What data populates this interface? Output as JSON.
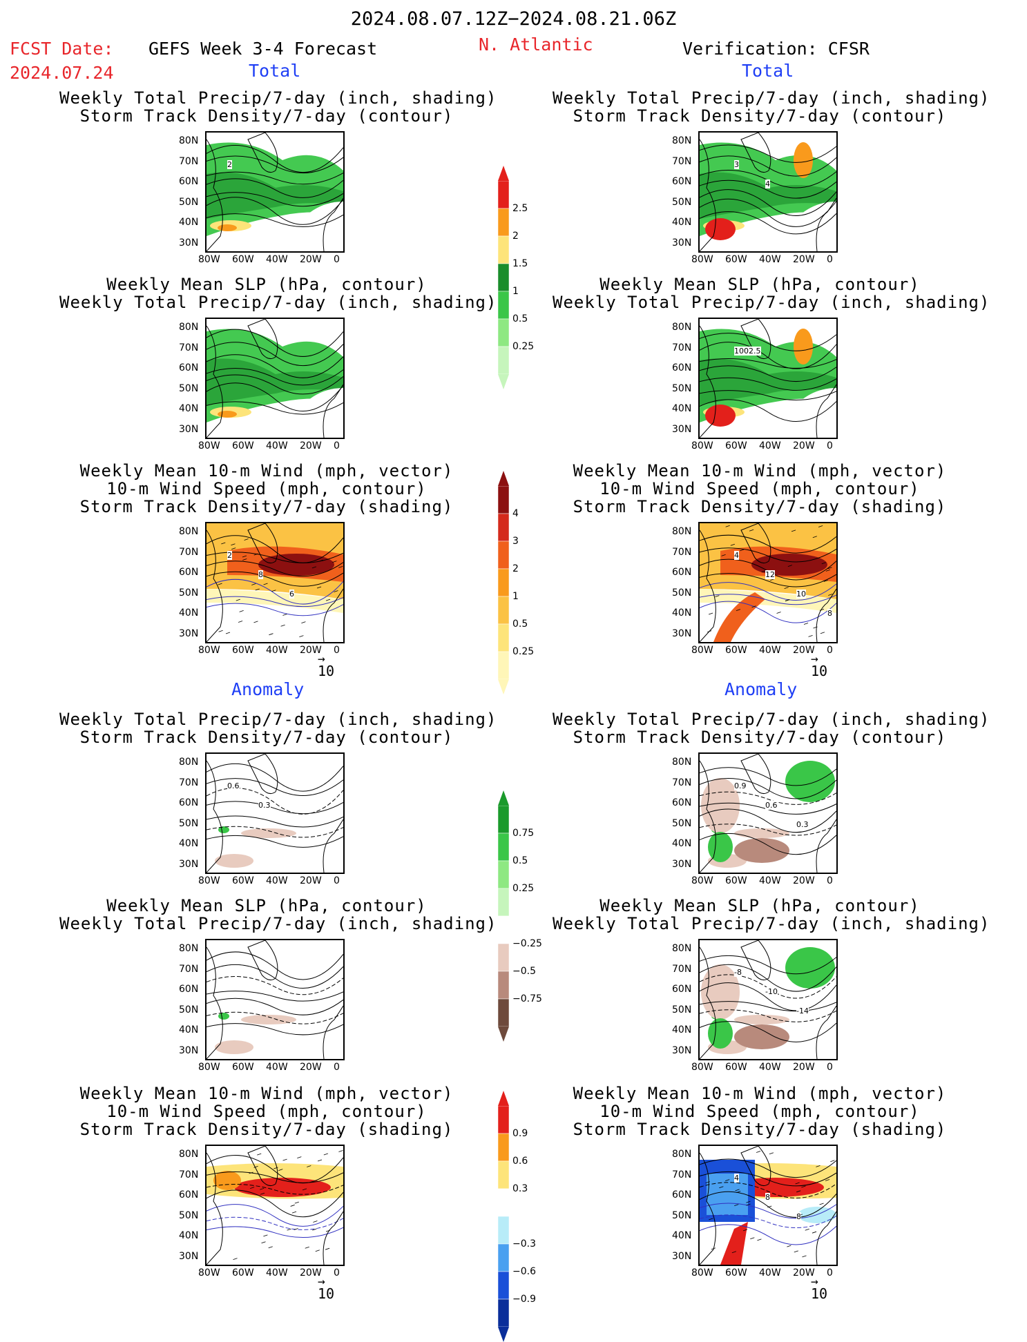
{
  "header": {
    "period": "2024.08.07.12Z−2024.08.21.06Z",
    "fcst_label": "FCST Date:",
    "fcst_date": "2024.07.24",
    "model": "GEFS Week 3-4 Forecast",
    "region": "N. Atlantic",
    "verification": "Verification: CFSR"
  },
  "sections": {
    "total": "Total",
    "anomaly": "Anomaly"
  },
  "panels": [
    {
      "title1": "Weekly Total Precip/7-day (inch, shading)",
      "title2": "Storm Track Density/7-day (contour)",
      "title3": "",
      "kind": "precip",
      "mode": "total",
      "side": "left",
      "labels": [
        "2"
      ]
    },
    {
      "title1": "Weekly Total Precip/7-day (inch, shading)",
      "title2": "Storm Track Density/7-day (contour)",
      "title3": "",
      "kind": "precip",
      "mode": "total",
      "side": "right",
      "labels": [
        "3",
        "4"
      ]
    },
    {
      "title1": "Weekly Mean SLP (hPa, contour)",
      "title2": "Weekly Total Precip/7-day (inch, shading)",
      "title3": "",
      "kind": "precip",
      "mode": "total",
      "side": "left",
      "labels": []
    },
    {
      "title1": "Weekly Mean SLP (hPa, contour)",
      "title2": "Weekly Total Precip/7-day (inch, shading)",
      "title3": "",
      "kind": "precip",
      "mode": "total",
      "side": "right",
      "labels": [
        "1002.5"
      ]
    },
    {
      "title1": "Weekly Mean 10-m Wind (mph, vector)",
      "title2": "10-m Wind Speed (mph, contour)",
      "title3": "Storm Track Density/7-day (shading)",
      "kind": "storm",
      "mode": "total",
      "side": "left",
      "labels": [
        "2",
        "8",
        "6"
      ]
    },
    {
      "title1": "Weekly Mean 10-m Wind (mph, vector)",
      "title2": "10-m Wind Speed (mph, contour)",
      "title3": "Storm Track Density/7-day (shading)",
      "kind": "storm",
      "mode": "total",
      "side": "right",
      "labels": [
        "4",
        "12",
        "10",
        "8"
      ]
    },
    {
      "title1": "Weekly Total Precip/7-day (inch, shading)",
      "title2": "Storm Track Density/7-day (contour)",
      "title3": "",
      "kind": "precip",
      "mode": "anom",
      "side": "left",
      "labels": [
        "0.6",
        "0.3"
      ]
    },
    {
      "title1": "Weekly Total Precip/7-day (inch, shading)",
      "title2": "Storm Track Density/7-day (contour)",
      "title3": "",
      "kind": "precip",
      "mode": "anom",
      "side": "right",
      "labels": [
        "0.9",
        "0.6",
        "0.3"
      ]
    },
    {
      "title1": "Weekly Mean SLP (hPa, contour)",
      "title2": "Weekly Total Precip/7-day (inch, shading)",
      "title3": "",
      "kind": "precip",
      "mode": "anom",
      "side": "left",
      "labels": []
    },
    {
      "title1": "Weekly Mean SLP (hPa, contour)",
      "title2": "Weekly Total Precip/7-day (inch, shading)",
      "title3": "",
      "kind": "precip",
      "mode": "anom",
      "side": "right",
      "labels": [
        "-8",
        "-10",
        "-14"
      ]
    },
    {
      "title1": "Weekly Mean 10-m Wind (mph, vector)",
      "title2": "10-m Wind Speed (mph, contour)",
      "title3": "Storm Track Density/7-day (shading)",
      "kind": "storm",
      "mode": "anom",
      "side": "left",
      "labels": []
    },
    {
      "title1": "Weekly Mean 10-m Wind (mph, vector)",
      "title2": "10-m Wind Speed (mph, contour)",
      "title3": "Storm Track Density/7-day (shading)",
      "kind": "storm",
      "mode": "anom",
      "side": "right",
      "labels": [
        "4",
        "8",
        "8"
      ]
    }
  ],
  "axes": {
    "lat_ticks": [
      "80N",
      "70N",
      "60N",
      "50N",
      "40N",
      "30N"
    ],
    "lon_ticks": [
      "80W",
      "60W",
      "40W",
      "20W",
      "0"
    ]
  },
  "wind_ref": "10",
  "colorbars": [
    {
      "name": "precip-total",
      "labels": [
        "2.5",
        "2",
        "1.5",
        "1",
        "0.5",
        "0.25"
      ],
      "colors": [
        "#e3201b",
        "#f99a1c",
        "#fde47a",
        "#1a8d2b",
        "#3ac648",
        "#8ee882",
        "#c6f5bc"
      ]
    },
    {
      "name": "storm-total",
      "labels": [
        "4",
        "3",
        "2",
        "1",
        "0.5",
        "0.25"
      ],
      "colors": [
        "#8c1010",
        "#d42a1c",
        "#f0601c",
        "#f99a1c",
        "#fbc244",
        "#fde47a",
        "#fff6b8"
      ]
    },
    {
      "name": "precip-anomaly",
      "labels": [
        "0.75",
        "0.5",
        "0.25",
        "−0.25",
        "−0.5",
        "−0.75"
      ],
      "colors": [
        "#1a9a2b",
        "#3ac648",
        "#8ee882",
        "#c6f5bc",
        "#ffffff",
        "#e8cbbf",
        "#b88a7c",
        "#6e4a3c"
      ]
    },
    {
      "name": "storm-anomaly",
      "labels": [
        "0.9",
        "0.6",
        "0.3",
        "−0.3",
        "−0.6",
        "−0.9"
      ],
      "colors": [
        "#e3201b",
        "#f99a1c",
        "#fde47a",
        "#ffffff",
        "#b8ecf8",
        "#4aa0f0",
        "#1a50d8",
        "#0a2e9a"
      ]
    }
  ]
}
